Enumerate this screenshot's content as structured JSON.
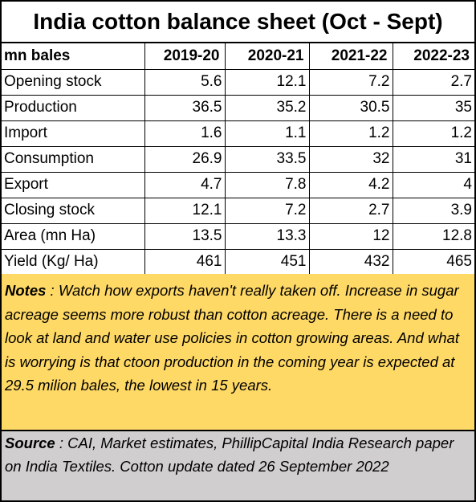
{
  "title": "India cotton balance sheet (Oct - Sept)",
  "table": {
    "unit_header": "mn bales",
    "years": [
      "2019-20",
      "2020-21",
      "2021-22",
      "2022-23"
    ],
    "rows": [
      {
        "label": "Opening stock",
        "values": [
          "5.6",
          "12.1",
          "7.2",
          "2.7"
        ]
      },
      {
        "label": "Production",
        "values": [
          "36.5",
          "35.2",
          "30.5",
          "35"
        ]
      },
      {
        "label": "Import",
        "values": [
          "1.6",
          "1.1",
          "1.2",
          "1.2"
        ]
      },
      {
        "label": "Consumption",
        "values": [
          "26.9",
          "33.5",
          "32",
          "31"
        ]
      },
      {
        "label": "Export",
        "values": [
          "4.7",
          "7.8",
          "4.2",
          "4"
        ]
      },
      {
        "label": "Closing stock",
        "values": [
          "12.1",
          "7.2",
          "2.7",
          "3.9"
        ]
      },
      {
        "label": "Area (mn Ha)",
        "values": [
          "13.5",
          "13.3",
          "12",
          "12.8"
        ]
      },
      {
        "label": "Yield (Kg/ Ha)",
        "values": [
          "461",
          "451",
          "432",
          "465"
        ]
      }
    ]
  },
  "notes": {
    "label": "Notes",
    "separator": " : ",
    "text": "Watch how exports haven't really taken off. Increase in sugar acreage seems more robust than cotton acreage. There is a need to look at land and water use policies in cotton growing areas.  And what is worrying is that ctoon production in the coming year is expected at 29.5 milion bales, the lowest in 15 years."
  },
  "source": {
    "label": "Source",
    "separator": " : ",
    "text": "CAI, Market estimates, PhillipCapital India Research paper on India Textiles. Cotton update dated 26 September 2022"
  }
}
